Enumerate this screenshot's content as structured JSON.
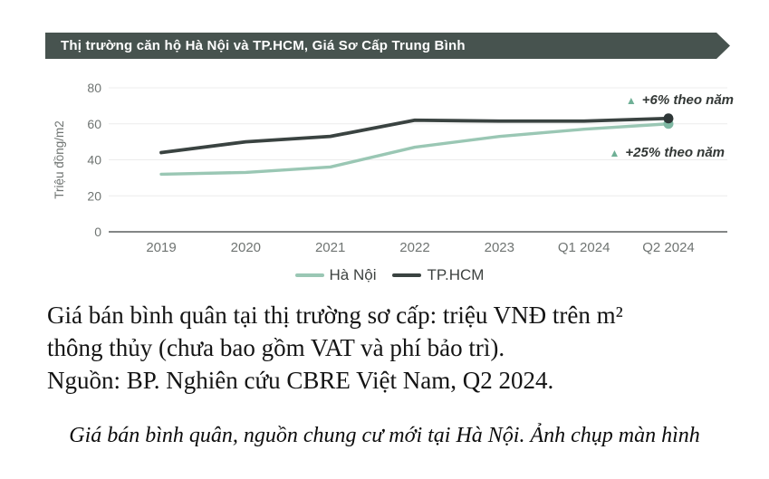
{
  "banner": {
    "title": "Thị trường căn hộ Hà Nội và TP.HCM, Giá Sơ Cấp Trung Bình",
    "bg_color": "#47534f",
    "text_color": "#ffffff"
  },
  "chart_data": {
    "type": "line",
    "title": "Thị trường căn hộ Hà Nội và TP.HCM, Giá Sơ Cấp Trung Bình",
    "categories": [
      "2019",
      "2020",
      "2021",
      "2022",
      "2023",
      "Q1 2024",
      "Q2 2024"
    ],
    "series": [
      {
        "name": "Hà Nội",
        "color": "#9ac7b4",
        "marker_color": "#7fb8a3",
        "values": [
          32,
          33,
          36,
          47,
          53,
          57,
          60
        ],
        "end_marker": true
      },
      {
        "name": "TP.HCM",
        "color": "#3a4341",
        "marker_color": "#2e3737",
        "values": [
          44,
          50,
          53,
          62,
          61.5,
          61.5,
          63
        ],
        "end_marker": true
      }
    ],
    "xlabel": "",
    "ylabel": "Triệu đồng/m2",
    "ylim": [
      0,
      80
    ],
    "yticks": [
      0,
      20,
      40,
      60,
      80
    ],
    "grid": true,
    "grid_color": "#ececec",
    "axis_color": "#5a5f5e",
    "tick_color": "#6f7472",
    "legend_position": "bottom",
    "annotations": [
      {
        "text": "+6% theo năm",
        "marker": "▲",
        "marker_color": "#6fb096",
        "applies_to": "TP.HCM"
      },
      {
        "text": "+25% theo năm",
        "marker": "▲",
        "marker_color": "#6fb096",
        "applies_to": "Hà Nội"
      }
    ]
  },
  "caption": {
    "line1": "Giá bán bình quân tại thị trường sơ cấp: triệu VNĐ trên m²",
    "line2": "thông thủy (chưa bao gồm VAT và phí bảo trì).",
    "line3": "Nguồn: BP. Nghiên cứu CBRE Việt Nam, Q2 2024."
  },
  "footer": {
    "text": "Giá bán bình quân, nguồn chung cư mới tại Hà Nội. Ảnh chụp màn hình"
  }
}
